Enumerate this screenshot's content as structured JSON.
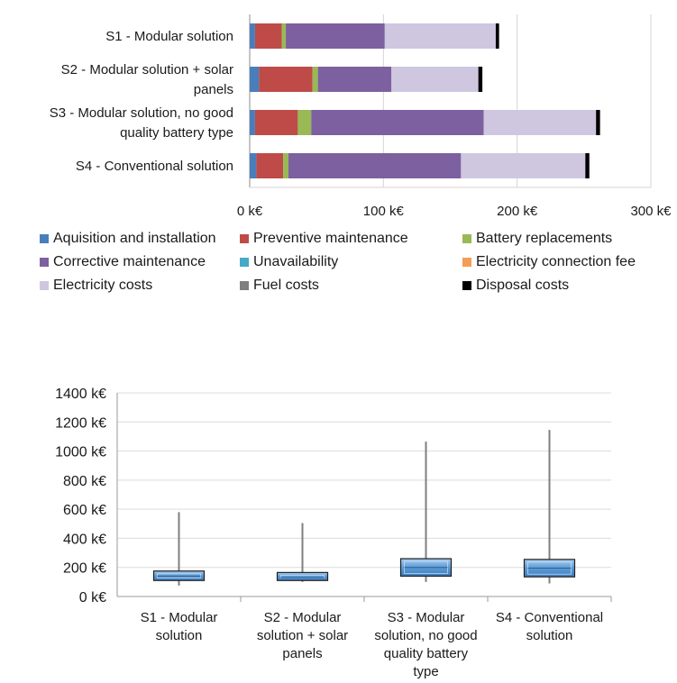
{
  "chart_data": [
    {
      "type": "bar",
      "orientation": "horizontal",
      "stacked": true,
      "categories": [
        "S1 - Modular solution",
        "S2 - Modular solution + solar panels",
        "S3 - Modular solution, no good quality battery type",
        "S4 - Conventional solution"
      ],
      "category_label_lines": [
        [
          "S1 - Modular solution"
        ],
        [
          "S2 - Modular solution + solar",
          "panels"
        ],
        [
          "S3 - Modular solution, no good",
          "quality battery type"
        ],
        [
          "S4 - Conventional solution"
        ]
      ],
      "series": [
        {
          "name": "Aquisition and installation",
          "color": "#4a7ebb",
          "values": [
            4,
            7,
            4,
            5
          ]
        },
        {
          "name": "Preventive maintenance",
          "color": "#be4b48",
          "values": [
            20,
            40,
            32,
            20
          ]
        },
        {
          "name": "Battery replacements",
          "color": "#98b954",
          "values": [
            3,
            4,
            10,
            4
          ]
        },
        {
          "name": "Corrective maintenance",
          "color": "#7d60a0",
          "values": [
            74,
            55,
            129,
            129
          ]
        },
        {
          "name": "Unavailability",
          "color": "#46aac5",
          "values": [
            0,
            0,
            0,
            0
          ]
        },
        {
          "name": "Electricity connection fee",
          "color": "#f59d56",
          "values": [
            0,
            0,
            0,
            0
          ]
        },
        {
          "name": "Electricity costs",
          "color": "#cfc7e0",
          "values": [
            83,
            65,
            84,
            93
          ]
        },
        {
          "name": "Fuel costs",
          "color": "#7f7f7f",
          "values": [
            0,
            0,
            0,
            0
          ]
        },
        {
          "name": "Disposal costs",
          "color": "#000000",
          "values": [
            2.5,
            3,
            3,
            3
          ]
        }
      ],
      "xlim": [
        0,
        300
      ],
      "x_ticks": [
        "0 k€",
        "100 k€",
        "200 k€",
        "300 k€"
      ],
      "x_tick_values": [
        0,
        100,
        200,
        300
      ],
      "grid": true,
      "legend_position": "bottom"
    },
    {
      "type": "box",
      "categories": [
        "S1 - Modular solution",
        "S2 - Modular solution + solar panels",
        "S3 - Modular solution, no good quality battery type",
        "S4 - Conventional solution"
      ],
      "category_label_lines": [
        [
          "S1 - Modular",
          "solution"
        ],
        [
          "S2 - Modular",
          "solution + solar",
          "panels"
        ],
        [
          "S3 - Modular",
          "solution, no good",
          "quality battery",
          "type"
        ],
        [
          "S4 - Conventional",
          "solution"
        ]
      ],
      "boxes": [
        {
          "min": 75,
          "q1": 110,
          "median": 140,
          "q3": 175,
          "max": 580
        },
        {
          "min": 100,
          "q1": 110,
          "median": 130,
          "q3": 165,
          "max": 505
        },
        {
          "min": 100,
          "q1": 140,
          "median": 200,
          "q3": 260,
          "max": 1065
        },
        {
          "min": 90,
          "q1": 135,
          "median": 195,
          "q3": 255,
          "max": 1145
        }
      ],
      "ylim": [
        0,
        1400
      ],
      "y_ticks": [
        "0 k€",
        "200 k€",
        "400 k€",
        "600 k€",
        "800 k€",
        "1000 k€",
        "1200 k€",
        "1400 k€"
      ],
      "y_tick_values": [
        0,
        200,
        400,
        600,
        800,
        1000,
        1200,
        1400
      ],
      "box_color": "#5b9bd5",
      "grid": true
    }
  ]
}
